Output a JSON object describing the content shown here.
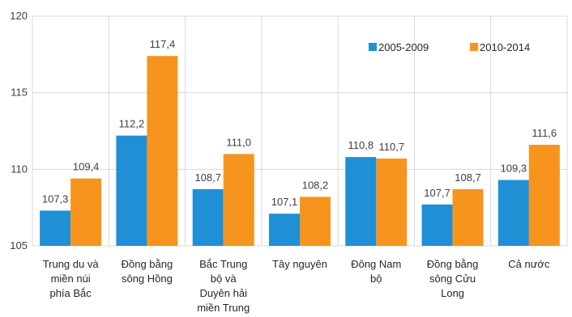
{
  "chart_data": {
    "type": "bar",
    "title": "",
    "xlabel": "",
    "ylabel": "",
    "ylim": [
      105,
      120
    ],
    "yticks": [
      105,
      110,
      115,
      120
    ],
    "grid": true,
    "legend_position": "top-right",
    "categories": [
      [
        "Trung du và",
        "miền núi",
        "phía Bắc"
      ],
      [
        "Đồng bằng",
        "sông Hồng"
      ],
      [
        "Bắc Trung",
        "bộ và",
        "Duyên hải",
        "miền Trung"
      ],
      [
        "Tây nguyên"
      ],
      [
        "Đông Nam",
        "bộ"
      ],
      [
        "Đồng bằng",
        "sông Cửu",
        "Long"
      ],
      [
        "Cả nước"
      ]
    ],
    "series": [
      {
        "name": "2005-2009",
        "color": "#1f8fd6",
        "values": [
          107.3,
          112.2,
          108.7,
          107.1,
          110.8,
          107.7,
          109.3
        ],
        "labels": [
          "107,3",
          "112,2",
          "108,7",
          "107,1",
          "110,8",
          "107,7",
          "109,3"
        ]
      },
      {
        "name": "2010-2014",
        "color": "#f7941d",
        "values": [
          109.4,
          117.4,
          111.0,
          108.2,
          110.7,
          108.7,
          111.6
        ],
        "labels": [
          "109,4",
          "117,4",
          "111,0",
          "108,2",
          "110,7",
          "108,7",
          "111,6"
        ]
      }
    ]
  }
}
